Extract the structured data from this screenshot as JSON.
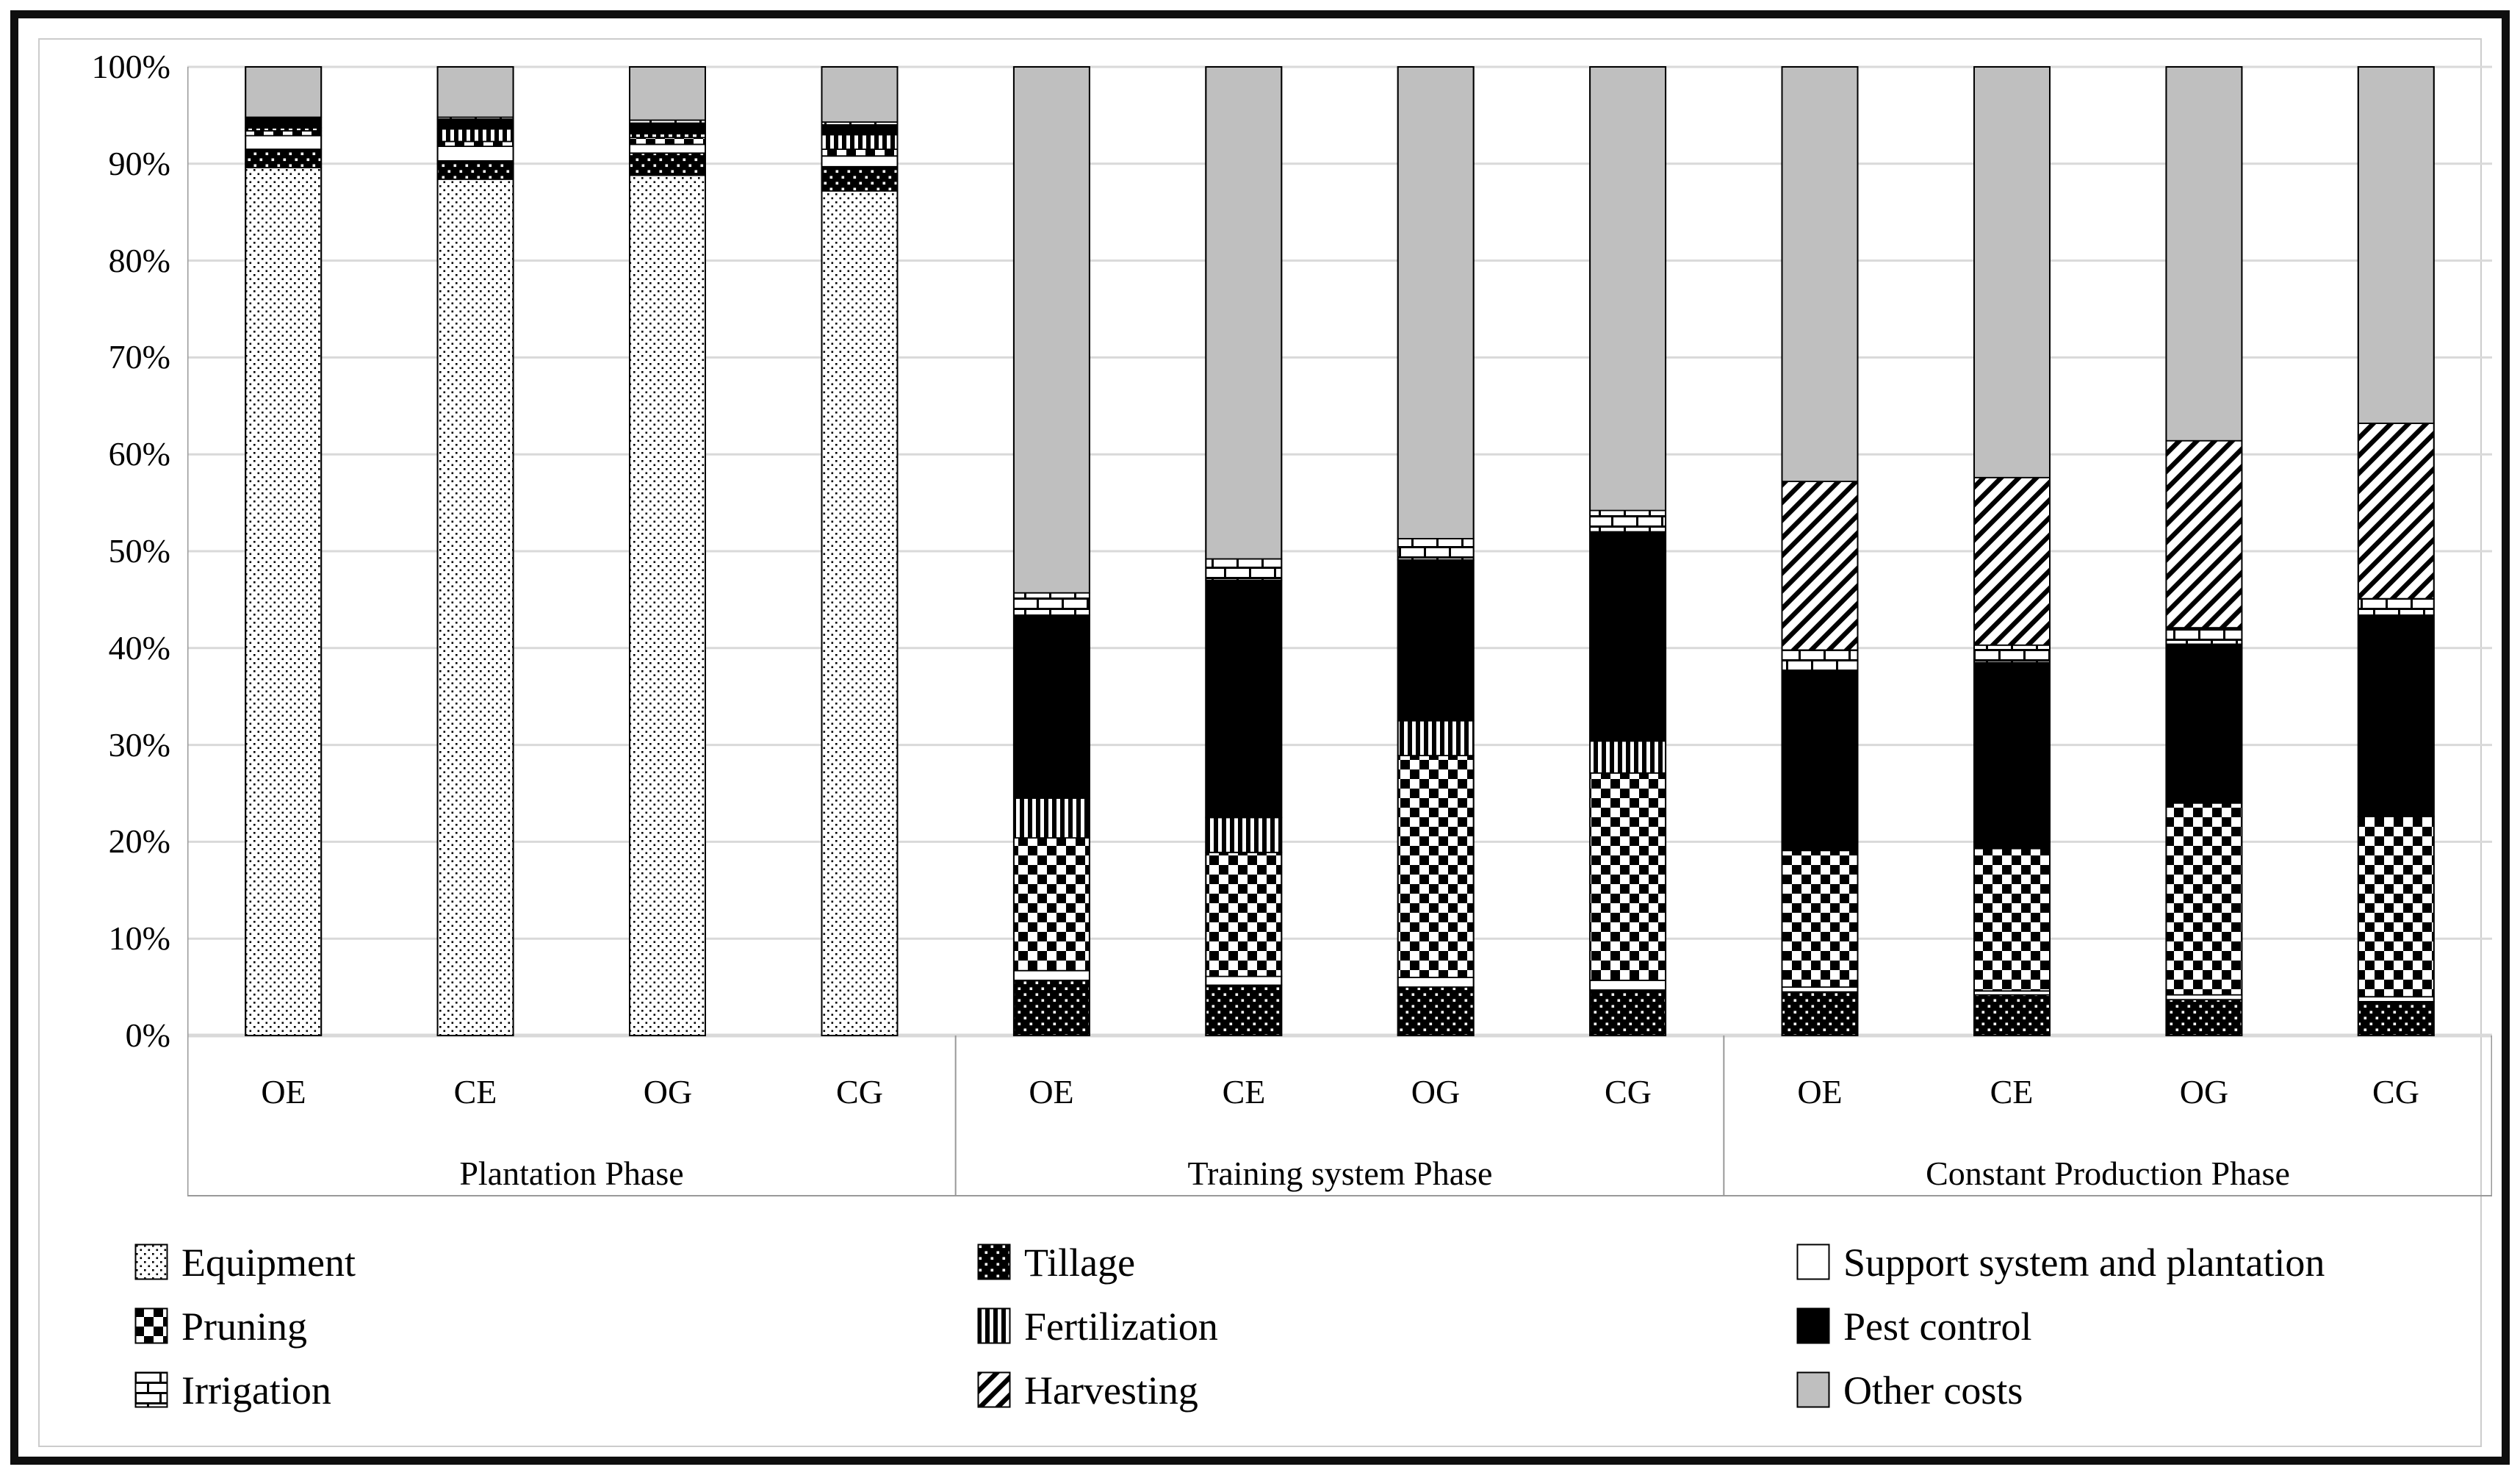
{
  "chart_data": {
    "type": "bar",
    "stacked": true,
    "percent_axis": true,
    "title": "",
    "xlabel": "",
    "ylabel": "",
    "ylim": [
      0,
      100
    ],
    "ytick_step": 10,
    "ytick_labels": [
      "0%",
      "10%",
      "20%",
      "30%",
      "40%",
      "50%",
      "60%",
      "70%",
      "80%",
      "90%",
      "100%"
    ],
    "grid": true,
    "groups": [
      "Plantation Phase",
      "Training system Phase",
      "Constant Production Phase"
    ],
    "categories_per_group": [
      "OE",
      "CE",
      "OG",
      "CG"
    ],
    "bar_order_note": "12 bars = groups x categories; values listed Plantation OE,CE,OG,CG then Training OE,CE,OG,CG then Constant OE,CE,OG,CG; stack bottom-to-top follows series order",
    "series": [
      {
        "name": "Equipment",
        "pattern": "dots-light",
        "values": [
          89.6,
          88.4,
          88.8,
          87.2,
          0,
          0,
          0,
          0,
          0,
          0,
          0,
          0
        ]
      },
      {
        "name": "Tillage",
        "pattern": "dots-dark",
        "values": [
          1.9,
          1.9,
          2.3,
          2.5,
          5.7,
          5.2,
          5.0,
          4.7,
          4.5,
          4.2,
          3.7,
          3.5
        ]
      },
      {
        "name": "Support system and plantation",
        "pattern": "solid-white",
        "values": [
          1.4,
          1.5,
          0.9,
          1.1,
          1.0,
          0.9,
          1.0,
          1.0,
          0.5,
          0.4,
          0.5,
          0.5
        ]
      },
      {
        "name": "Pruning",
        "pattern": "checker",
        "values": [
          0.5,
          0.5,
          0.7,
          0.7,
          13.7,
          12.8,
          22.9,
          21.4,
          14.1,
          14.7,
          19.8,
          18.6
        ]
      },
      {
        "name": "Fertilization",
        "pattern": "vstripes",
        "values": [
          0.3,
          1.3,
          0.4,
          1.5,
          4.1,
          3.6,
          3.6,
          3.3,
          0,
          0,
          0,
          0
        ]
      },
      {
        "name": "Pest control",
        "pattern": "solid-black",
        "values": [
          1.1,
          1.0,
          1.1,
          1.0,
          18.9,
          24.5,
          16.6,
          21.6,
          18.6,
          19.2,
          16.4,
          20.8
        ]
      },
      {
        "name": "Irrigation",
        "pattern": "brick",
        "values": [
          0,
          0.2,
          0.3,
          0.3,
          2.3,
          2.2,
          2.2,
          2.2,
          2.1,
          1.8,
          1.7,
          1.7
        ]
      },
      {
        "name": "Harvesting",
        "pattern": "diag",
        "values": [
          0,
          0,
          0,
          0,
          0,
          0,
          0,
          0,
          17.4,
          17.3,
          19.3,
          18.1
        ]
      },
      {
        "name": "Other costs",
        "pattern": "solid-gray",
        "values": [
          5.2,
          5.2,
          5.5,
          5.7,
          54.3,
          50.8,
          48.7,
          45.8,
          42.8,
          42.4,
          38.6,
          36.8
        ]
      }
    ],
    "legend_position": "bottom",
    "legend_columns": [
      [
        "Equipment",
        "Pruning",
        "Irrigation"
      ],
      [
        "Tillage",
        "Fertilization",
        "Harvesting"
      ],
      [
        "Support system and plantation",
        "Pest control",
        "Other costs"
      ]
    ],
    "colors": {
      "other_costs_gray": "#bfbfbf",
      "gridline": "#d9d9d9",
      "axis_line": "#999999",
      "ink": "#000000",
      "background": "#ffffff"
    }
  }
}
